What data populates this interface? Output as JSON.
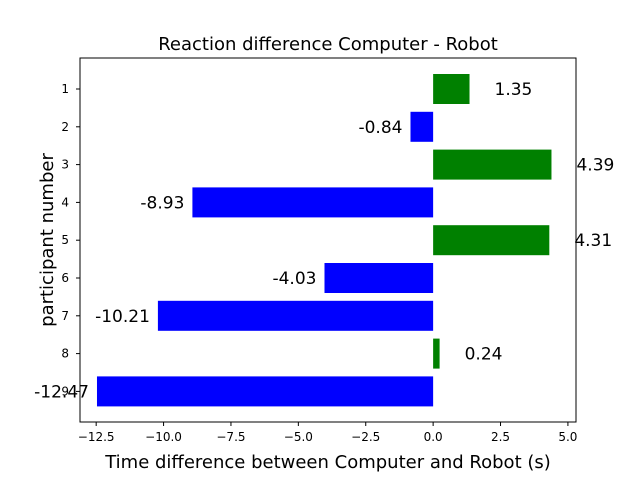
{
  "chart_data": {
    "type": "bar",
    "orientation": "horizontal",
    "title": "Reaction difference  Computer - Robot",
    "xlabel": "Time difference between Computer and Robot (s)",
    "ylabel": "participant number",
    "categories": [
      "1",
      "2",
      "3",
      "4",
      "5",
      "6",
      "7",
      "8",
      "9"
    ],
    "values": [
      1.35,
      -0.84,
      4.39,
      -8.93,
      4.31,
      -4.03,
      -10.21,
      0.24,
      -12.47
    ],
    "data_labels": [
      "1.35",
      "-0.84",
      "4.39",
      "-8.93",
      "4.31",
      "-4.03",
      "-10.21",
      "0.24",
      "-12.47"
    ],
    "xlim": [
      -13.1,
      5.3
    ],
    "xticks": [
      -12.5,
      -10.0,
      -7.5,
      -5.0,
      -2.5,
      0.0,
      2.5,
      5.0
    ],
    "xtick_labels": [
      "−12.5",
      "−10.0",
      "−7.5",
      "−5.0",
      "−2.5",
      "0.0",
      "2.5",
      "5.0"
    ],
    "grid": false,
    "legend": "none",
    "colors": {
      "positive": "#008000",
      "negative": "#0000ff"
    }
  }
}
